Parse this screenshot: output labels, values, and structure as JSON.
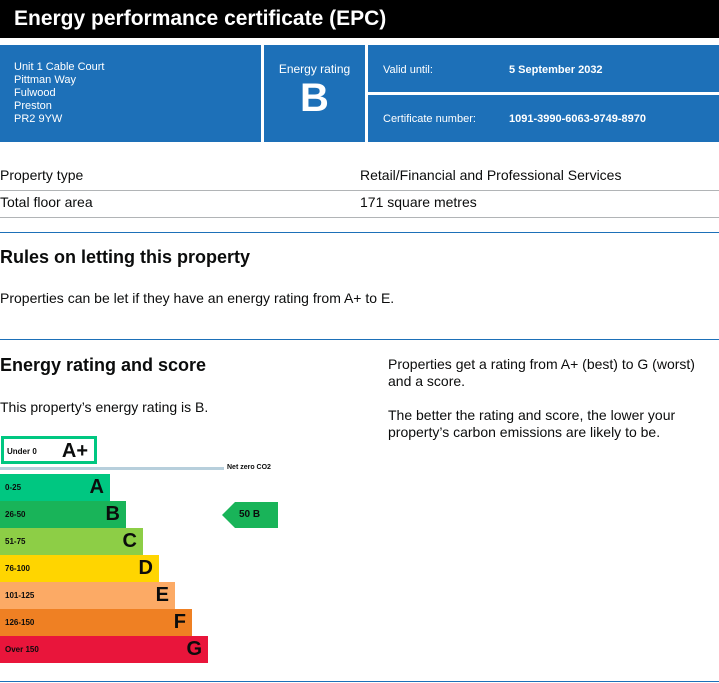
{
  "header": {
    "title": "Energy performance certificate (EPC)"
  },
  "summary": {
    "address": [
      "Unit 1 Cable Court",
      "Pittman Way",
      "Fulwood",
      "Preston",
      "PR2 9YW"
    ],
    "rating_label": "Energy rating",
    "rating": "B",
    "valid_label": "Valid until:",
    "valid_value": "5 September 2032",
    "certificate_label": "Certificate number:",
    "certificate_value": "1091-3990-6063-9749-8970"
  },
  "property": {
    "rows": [
      {
        "label": "Property type",
        "value": "Retail/Financial and Professional Services"
      },
      {
        "label": "Total floor area",
        "value": "171 square metres"
      }
    ]
  },
  "letting": {
    "heading": "Rules on letting this property",
    "text": "Properties can be let if they have an energy rating from A+ to E."
  },
  "energy": {
    "heading": "Energy rating and score",
    "text": "This property’s energy rating is B.",
    "side_text_1": "Properties get a rating from A+ (best) to G (worst) and a score.",
    "side_text_2": "The better the rating and score, the lower your property’s carbon emissions are likely to be."
  },
  "chart_data": {
    "type": "bar",
    "bands": [
      {
        "range": "Under 0",
        "letter": "A+",
        "color": "#ffffff",
        "border": "#00c781"
      },
      {
        "range": "0-25",
        "letter": "A",
        "color": "#00c781"
      },
      {
        "range": "26-50",
        "letter": "B",
        "color": "#19b459"
      },
      {
        "range": "51-75",
        "letter": "C",
        "color": "#8dce46"
      },
      {
        "range": "76-100",
        "letter": "D",
        "color": "#ffd500"
      },
      {
        "range": "101-125",
        "letter": "E",
        "color": "#fcaa65"
      },
      {
        "range": "126-150",
        "letter": "F",
        "color": "#ef8023"
      },
      {
        "range": "Over 150",
        "letter": "G",
        "color": "#e9153b"
      }
    ],
    "net_zero_label": "Net zero CO2",
    "current": {
      "score": 50,
      "letter": "B",
      "label": "50  B",
      "color": "#19b459"
    }
  }
}
